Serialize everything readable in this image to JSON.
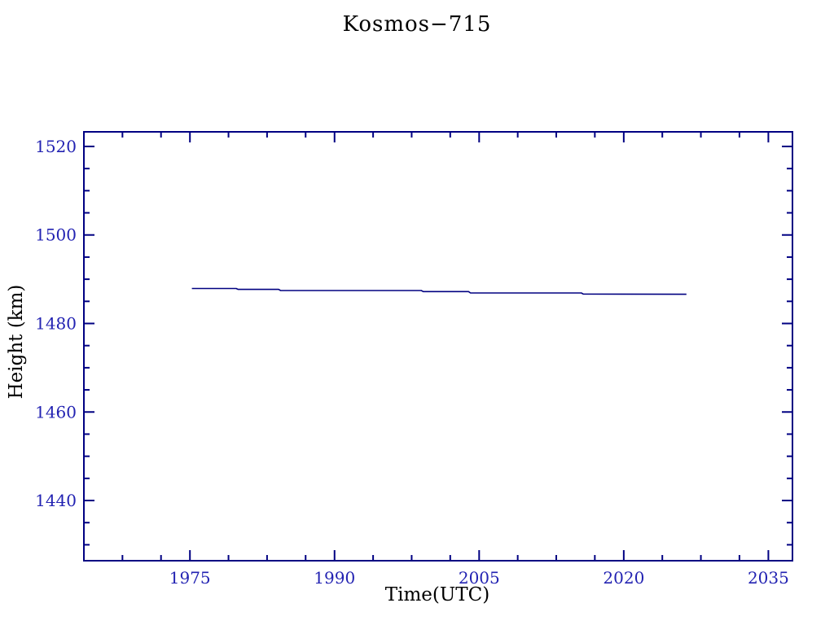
{
  "page": {
    "background": "#ffffff"
  },
  "chart_data": {
    "type": "line",
    "title": "Kosmos−715",
    "xlabel": "Time(UTC)",
    "ylabel": "Height (km)",
    "xlim": [
      1964.0,
      2037.5
    ],
    "ylim": [
      1426.4,
      1523.3
    ],
    "x_major_ticks": [
      1975,
      1990,
      2005,
      2020,
      2035
    ],
    "x_minor_ticks": [
      1968,
      1972,
      1979,
      1983,
      1987,
      1994,
      1998,
      2002,
      2009,
      2013,
      2017,
      2024,
      2028,
      2032
    ],
    "y_major_ticks": [
      1440,
      1460,
      1480,
      1500,
      1520
    ],
    "y_minor_ticks": [
      1430,
      1435,
      1445,
      1450,
      1455,
      1465,
      1470,
      1475,
      1485,
      1490,
      1495,
      1505,
      1510,
      1515
    ],
    "grid": false,
    "legend": null,
    "series": [
      {
        "name": "height-km",
        "points": [
          [
            1975.2,
            1487.9
          ],
          [
            1979.8,
            1487.9
          ],
          [
            1980.0,
            1487.7
          ],
          [
            1984.2,
            1487.7
          ],
          [
            1984.4,
            1487.45
          ],
          [
            1999.0,
            1487.45
          ],
          [
            1999.2,
            1487.2
          ],
          [
            2003.9,
            1487.2
          ],
          [
            2004.1,
            1486.9
          ],
          [
            2015.6,
            1486.9
          ],
          [
            2015.8,
            1486.65
          ],
          [
            2026.5,
            1486.6
          ]
        ]
      }
    ],
    "colors": {
      "axis": "#000082",
      "line": "#000080",
      "text": "#2222b2"
    }
  }
}
